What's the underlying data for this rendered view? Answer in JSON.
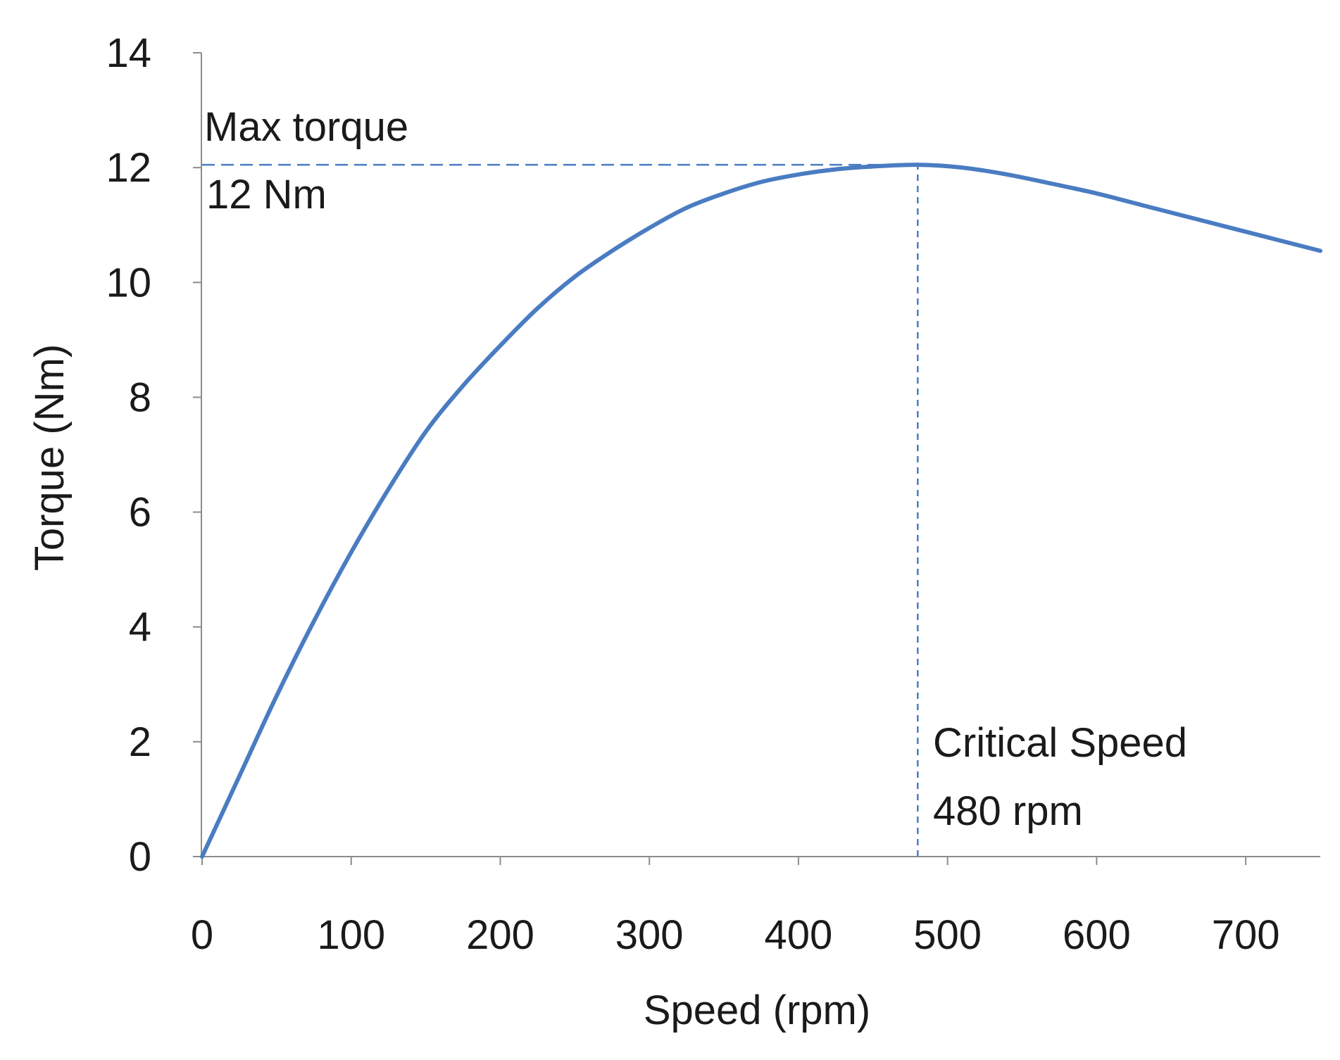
{
  "chart_data": {
    "type": "line",
    "title": "",
    "xlabel": "Speed (rpm)",
    "ylabel": "Torque (Nm)",
    "xlim": [
      0,
      750
    ],
    "ylim": [
      0,
      14
    ],
    "xticks": [
      0,
      100,
      200,
      300,
      400,
      500,
      600,
      700
    ],
    "yticks": [
      0,
      2,
      4,
      6,
      8,
      10,
      12,
      14
    ],
    "grid": false,
    "series": [
      {
        "name": "Torque",
        "color": "#4a7cc2",
        "x": [
          0,
          25,
          50,
          75,
          100,
          125,
          150,
          175,
          200,
          225,
          250,
          275,
          300,
          325,
          350,
          375,
          400,
          425,
          450,
          480,
          510,
          540,
          570,
          600,
          630,
          660,
          690,
          720,
          750
        ],
        "y": [
          0,
          1.4,
          2.8,
          4.1,
          5.3,
          6.4,
          7.4,
          8.2,
          8.9,
          9.55,
          10.1,
          10.55,
          10.95,
          11.3,
          11.55,
          11.75,
          11.88,
          11.97,
          12.02,
          12.05,
          12.0,
          11.88,
          11.72,
          11.55,
          11.35,
          11.15,
          10.95,
          10.75,
          10.55
        ]
      }
    ],
    "reference_lines": [
      {
        "orientation": "horizontal",
        "value": 12.05,
        "from": 0,
        "to": 480,
        "style": "dashed",
        "color": "#4a7cc2"
      },
      {
        "orientation": "vertical",
        "value": 480,
        "from": 0,
        "to": 12.05,
        "style": "dashed",
        "color": "#4a7cc2"
      }
    ],
    "annotations": [
      {
        "id": "max",
        "line1": "Max torque",
        "line2": "12 Nm"
      },
      {
        "id": "critical",
        "line1": "Critical Speed",
        "line2": "480 rpm"
      }
    ]
  }
}
